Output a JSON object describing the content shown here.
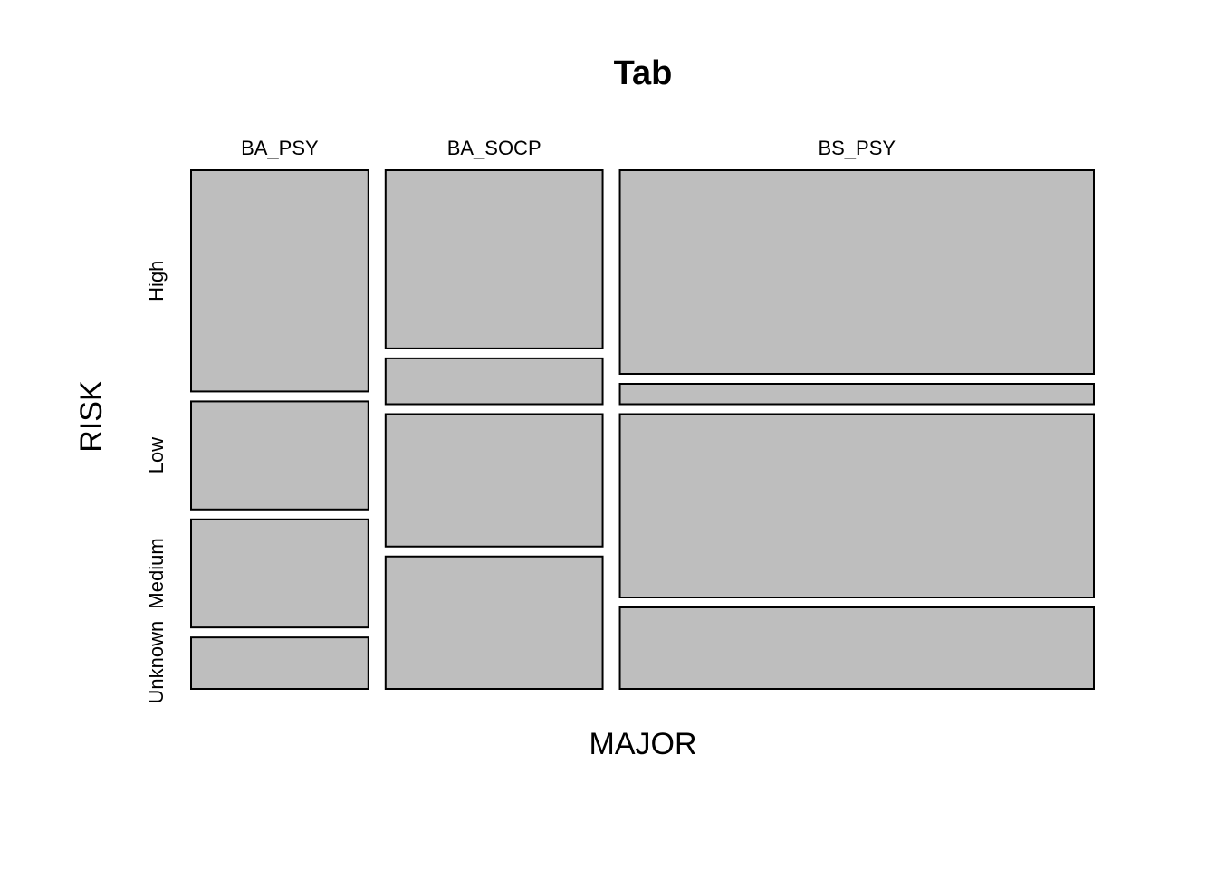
{
  "chart_data": {
    "type": "mosaic",
    "title": "Tab",
    "xlabel": "MAJOR",
    "ylabel": "RISK",
    "x_categories": [
      "BA_PSY",
      "BA_SOCP",
      "BS_PSY"
    ],
    "y_categories": [
      "High",
      "Low",
      "Medium",
      "Unknown"
    ],
    "tile_color": "#bebebe",
    "border_color": "#000000",
    "column_proportions": [
      0.196,
      0.24,
      0.524
    ],
    "cells": [
      {
        "major": "BA_PSY",
        "risk": "High",
        "proportion": 0.43
      },
      {
        "major": "BA_PSY",
        "risk": "Low",
        "proportion": 0.21
      },
      {
        "major": "BA_PSY",
        "risk": "Medium",
        "proportion": 0.21
      },
      {
        "major": "BA_PSY",
        "risk": "Unknown",
        "proportion": 0.1
      },
      {
        "major": "BA_SOCP",
        "risk": "High",
        "proportion": 0.35
      },
      {
        "major": "BA_SOCP",
        "risk": "Low",
        "proportion": 0.09
      },
      {
        "major": "BA_SOCP",
        "risk": "Medium",
        "proportion": 0.26
      },
      {
        "major": "BA_SOCP",
        "risk": "Unknown",
        "proportion": 0.26
      },
      {
        "major": "BS_PSY",
        "risk": "High",
        "proportion": 0.4
      },
      {
        "major": "BS_PSY",
        "risk": "Low",
        "proportion": 0.04
      },
      {
        "major": "BS_PSY",
        "risk": "Medium",
        "proportion": 0.36
      },
      {
        "major": "BS_PSY",
        "risk": "Unknown",
        "proportion": 0.16
      }
    ]
  }
}
